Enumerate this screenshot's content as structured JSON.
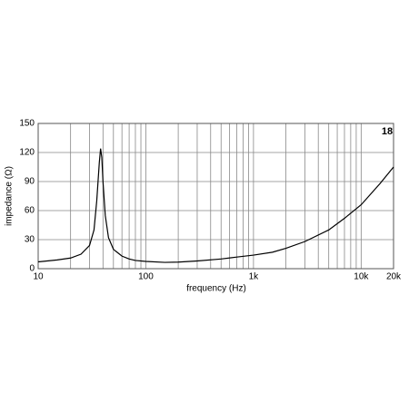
{
  "chart_data": {
    "type": "line",
    "x_label": "frequency (Hz)",
    "y_label": "impedance (Ω)",
    "logo": "18",
    "x": [
      10,
      15,
      20,
      25,
      30,
      33,
      35,
      37,
      38,
      39,
      40,
      42,
      45,
      50,
      60,
      70,
      80,
      100,
      150,
      200,
      300,
      500,
      700,
      1000,
      1500,
      2000,
      3000,
      5000,
      7000,
      10000,
      15000,
      20000
    ],
    "series": [
      {
        "color": "#000000",
        "values": [
          7,
          9,
          11,
          15,
          24,
          40,
          70,
          110,
          124,
          115,
          90,
          55,
          32,
          20,
          13,
          10,
          8.5,
          7.5,
          6.5,
          6.8,
          8,
          10,
          12,
          14,
          17,
          21,
          28,
          40,
          52,
          66,
          88,
          105
        ]
      }
    ],
    "xlim": [
      10,
      20000
    ],
    "xscale": "log",
    "xticks": [
      10,
      100,
      {
        "value": 1000,
        "label": "1k"
      },
      {
        "value": 10000,
        "label": "10k"
      },
      {
        "value": 20000,
        "label": "20k"
      }
    ],
    "xminor_ticks": [
      20,
      30,
      40,
      50,
      60,
      70,
      80,
      90,
      200,
      300,
      400,
      500,
      600,
      700,
      800,
      900,
      2000,
      3000,
      4000,
      5000,
      6000,
      7000,
      8000,
      9000
    ],
    "ylim": [
      0,
      150
    ],
    "yticks": [
      0,
      30,
      60,
      90,
      120,
      150
    ],
    "grid": true
  }
}
